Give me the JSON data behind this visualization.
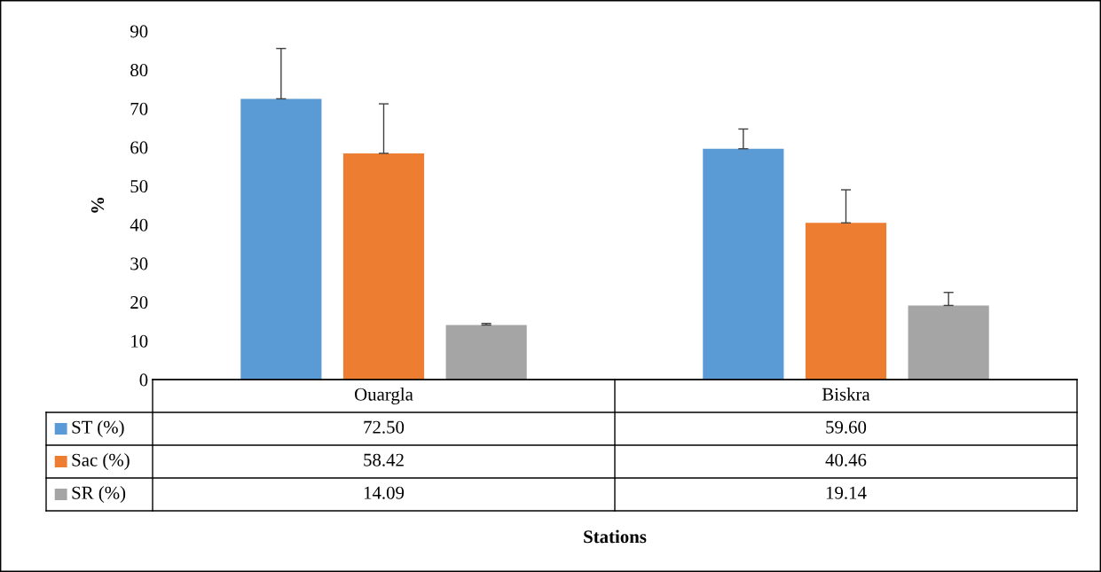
{
  "chart_data": {
    "type": "bar",
    "annotations": [
      "Stations"
    ],
    "ylabel": "%",
    "categories": [
      "Ouargla",
      "Biskra"
    ],
    "series": [
      {
        "name": "ST (%)",
        "color": "#5b9bd5",
        "values": [
          72.5,
          59.6
        ],
        "errors": [
          [
            72.5,
            85.5
          ],
          [
            59.6,
            64.7
          ]
        ],
        "value_labels": [
          "72.50",
          "59.60"
        ]
      },
      {
        "name": "Sac (%)",
        "color": "#ed7d31",
        "values": [
          58.42,
          40.46
        ],
        "errors": [
          [
            58.42,
            71.2
          ],
          [
            40.46,
            49.0
          ]
        ],
        "value_labels": [
          "58.42",
          "40.46"
        ]
      },
      {
        "name": "SR (%)",
        "color": "#a5a5a5",
        "values": [
          14.09,
          19.14
        ],
        "errors": [
          [
            14.09,
            14.5
          ],
          [
            19.14,
            22.5
          ]
        ],
        "value_labels": [
          "14.09",
          "19.14"
        ]
      }
    ],
    "ylim": [
      0,
      90
    ],
    "yticks": [
      0,
      10,
      20,
      30,
      40,
      50,
      60,
      70,
      80,
      90
    ],
    "grid": false,
    "legend": "bottom"
  }
}
